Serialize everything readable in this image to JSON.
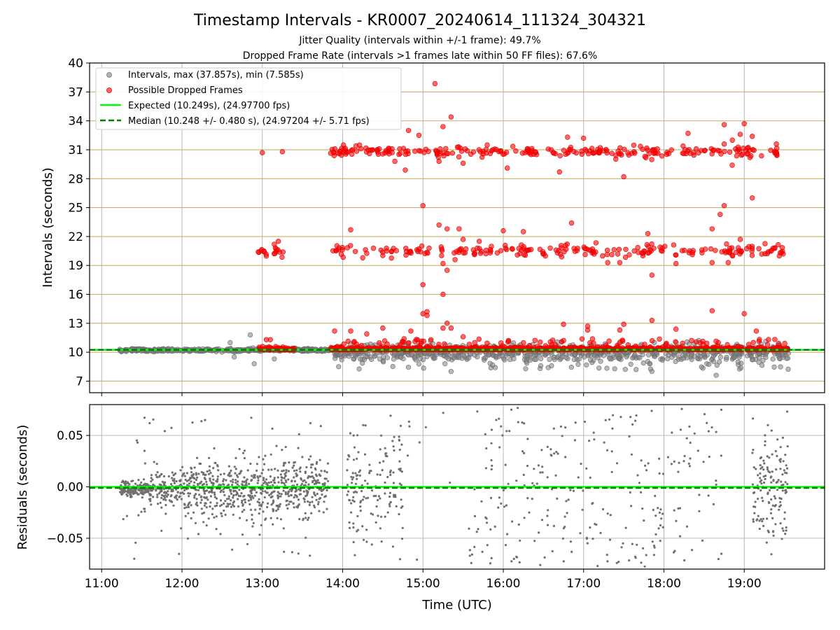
{
  "chart_data": [
    {
      "type": "scatter",
      "title": "Timestamp Intervals - KR0007_20240614_111324_304321",
      "subtitle_1": "Jitter Quality (intervals within +/-1 frame): 49.7%",
      "subtitle_2": "Dropped Frame Rate (intervals >1 frames late within 50 FF files): 67.6%",
      "xlabel": "Time (UTC)",
      "ylabel": "Intervals (seconds)",
      "x_tick_labels": [
        "11:00",
        "12:00",
        "13:00",
        "14:00",
        "15:00",
        "16:00",
        "17:00",
        "18:00",
        "19:00"
      ],
      "xlim": [
        10.85,
        20.0
      ],
      "ylim": [
        5.8,
        40
      ],
      "yticks": [
        7,
        10,
        13,
        16,
        19,
        22,
        25,
        28,
        31,
        34,
        37,
        40
      ],
      "grid": true,
      "legend_position": "top-left",
      "legend": [
        "Intervals, max (37.857s), min (7.585s)",
        "Possible Dropped Frames",
        "Expected (10.249s), (24.97700 fps)",
        "Median (10.248 +/- 0.480 s), (24.97204 +/- 5.71 fps)"
      ],
      "expected_interval": 10.249,
      "median_interval": 10.248,
      "colors": {
        "intervals": "#808080",
        "dropped": "#ff0000",
        "expected": "#00ff00",
        "median": "#008000",
        "hgrid": "#c8b06a"
      },
      "series": [
        {
          "name": "Intervals, max (37.857s), min (7.585s)",
          "x_range": [
            11.22,
            19.55
          ],
          "y_max": 37.857,
          "y_min": 7.585
        },
        {
          "name": "Possible Dropped Frames",
          "bands": [
            10.3,
            20.5,
            30.8
          ],
          "outliers": [
            [
              15.15,
              37.857
            ],
            [
              14.82,
              33.0
            ],
            [
              14.95,
              32.5
            ],
            [
              15.25,
              33.4
            ],
            [
              15.35,
              34.4
            ],
            [
              16.8,
              32.3
            ],
            [
              17.0,
              32.2
            ],
            [
              18.3,
              32.7
            ],
            [
              18.75,
              33.6
            ],
            [
              19.0,
              33.7
            ],
            [
              18.95,
              32.6
            ],
            [
              19.4,
              31.6
            ],
            [
              19.1,
              32.4
            ],
            [
              15.8,
              31.5
            ],
            [
              15.5,
              29.6
            ],
            [
              15.2,
              29.8
            ],
            [
              16.05,
              29.1
            ],
            [
              16.7,
              28.7
            ],
            [
              17.5,
              28.2
            ],
            [
              18.85,
              29.4
            ],
            [
              14.65,
              29.8
            ],
            [
              14.78,
              28.9
            ],
            [
              15.0,
              25.2
            ],
            [
              18.75,
              25.2
            ],
            [
              19.1,
              26.0
            ],
            [
              18.7,
              24.3
            ],
            [
              15.2,
              23.2
            ],
            [
              15.3,
              22.8
            ],
            [
              15.45,
              22.8
            ],
            [
              16.85,
              23.4
            ],
            [
              14.1,
              22.7
            ],
            [
              16.0,
              22.6
            ],
            [
              16.25,
              22.5
            ],
            [
              17.8,
              22.3
            ],
            [
              18.6,
              22.8
            ],
            [
              18.95,
              21.7
            ],
            [
              15.5,
              21.7
            ],
            [
              15.7,
              21.5
            ],
            [
              13.15,
              21.2
            ],
            [
              14.25,
              19.8
            ],
            [
              15.3,
              18.5
            ],
            [
              15.25,
              19.2
            ],
            [
              15.4,
              19.6
            ],
            [
              17.3,
              19.3
            ],
            [
              17.45,
              19.3
            ],
            [
              17.85,
              18.0
            ],
            [
              18.15,
              19.2
            ],
            [
              18.6,
              19.3
            ],
            [
              18.8,
              19.3
            ],
            [
              15.0,
              17.0
            ],
            [
              15.0,
              14.0
            ],
            [
              15.05,
              14.2
            ],
            [
              15.05,
              13.8
            ],
            [
              15.25,
              16.0
            ],
            [
              15.25,
              12.5
            ],
            [
              15.3,
              13.0
            ],
            [
              15.35,
              12.5
            ],
            [
              14.5,
              12.5
            ],
            [
              14.85,
              12.2
            ],
            [
              15.5,
              11.6
            ],
            [
              16.75,
              12.9
            ],
            [
              17.05,
              12.7
            ],
            [
              17.05,
              12.3
            ],
            [
              17.45,
              12.3
            ],
            [
              17.5,
              12.9
            ],
            [
              17.85,
              13.3
            ],
            [
              18.15,
              12.4
            ],
            [
              18.6,
              14.3
            ],
            [
              19.0,
              14.0
            ],
            [
              19.15,
              12.2
            ],
            [
              13.9,
              12.2
            ],
            [
              14.1,
              12.2
            ],
            [
              14.3,
              11.9
            ],
            [
              15.1,
              11.3
            ],
            [
              13.05,
              11.3
            ],
            [
              13.1,
              11.3
            ],
            [
              13.2,
              21.5
            ],
            [
              13.0,
              30.7
            ],
            [
              13.25,
              30.8
            ],
            [
              18.75,
              31.6
            ]
          ]
        },
        {
          "name": "Expected (10.249s), (24.97700 fps)",
          "value": 10.249
        },
        {
          "name": "Median (10.248 +/- 0.480 s), (24.97204 +/- 5.71 fps)",
          "value": 10.248
        }
      ]
    },
    {
      "type": "scatter",
      "xlabel": "Time (UTC)",
      "ylabel": "Residuals (seconds)",
      "ylim": [
        -0.08,
        0.08
      ],
      "yticks": [
        -0.05,
        0.0,
        0.05
      ],
      "ytick_labels": [
        "−0.05",
        "0.00",
        "0.05"
      ],
      "grid": true,
      "x_range": [
        11.22,
        19.55
      ],
      "expected_residual": 0.0,
      "median_residual": -0.001,
      "colors": {
        "points": "#707070",
        "expected": "#00ff00",
        "median": "#008000"
      }
    }
  ]
}
